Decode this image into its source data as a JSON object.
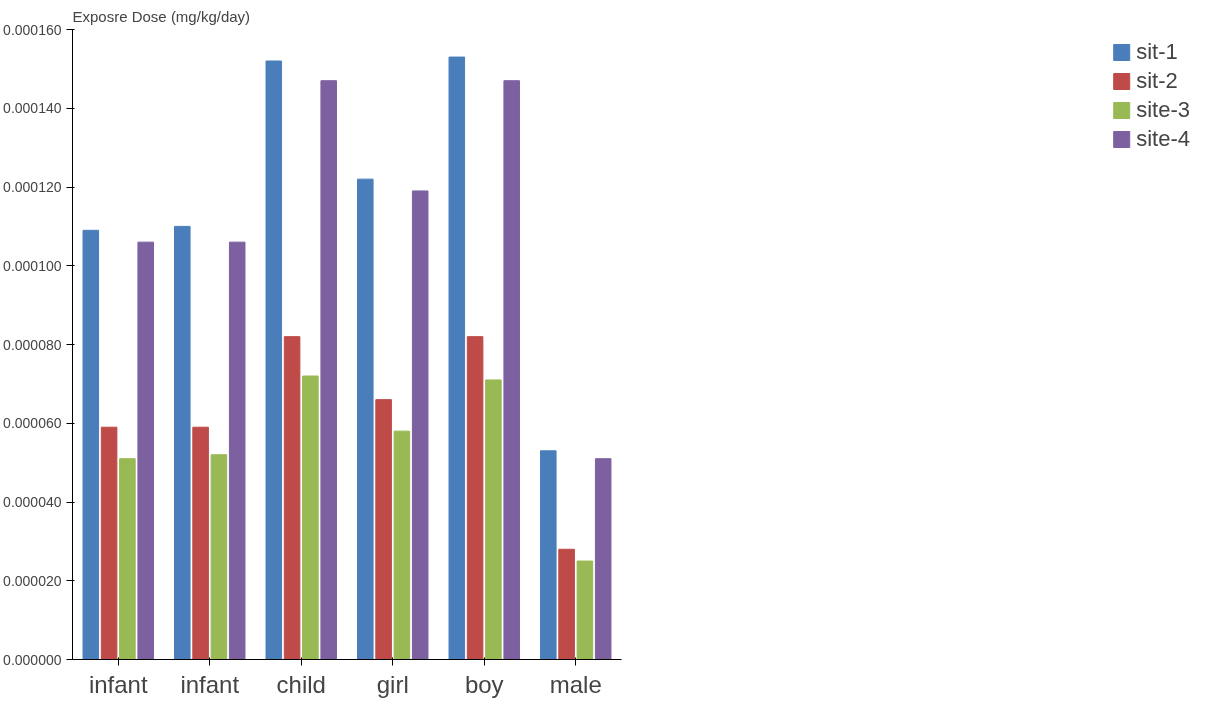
{
  "chart_data": {
    "type": "bar",
    "ylabel": "Exposre Dose (mg/kg/day)",
    "categories": [
      "infant",
      "infant",
      "child",
      "girl",
      "boy",
      "male"
    ],
    "series": [
      {
        "name": "sit-1",
        "color": "#4a7ebb",
        "values": [
          0.000109,
          0.00011,
          0.000152,
          0.000122,
          0.000153,
          5.3e-05
        ]
      },
      {
        "name": "sit-2",
        "color": "#be4b48",
        "values": [
          5.9e-05,
          5.9e-05,
          8.2e-05,
          6.6e-05,
          8.2e-05,
          2.8e-05
        ]
      },
      {
        "name": "site-3",
        "color": "#98b954",
        "values": [
          5.1e-05,
          5.2e-05,
          7.2e-05,
          5.8e-05,
          7.1e-05,
          2.5e-05
        ]
      },
      {
        "name": "site-4",
        "color": "#7d60a0",
        "values": [
          0.000106,
          0.000106,
          0.000147,
          0.000119,
          0.000147,
          5.1e-05
        ]
      }
    ],
    "ylim": [
      0,
      0.00016
    ],
    "yticks": [
      {
        "value": 0,
        "label": "0.000000"
      },
      {
        "value": 2e-05,
        "label": "0.000020"
      },
      {
        "value": 4e-05,
        "label": "0.000040"
      },
      {
        "value": 6e-05,
        "label": "0.000060"
      },
      {
        "value": 8e-05,
        "label": "0.000080"
      },
      {
        "value": 0.0001,
        "label": "0.000100"
      },
      {
        "value": 0.00012,
        "label": "0.000120"
      },
      {
        "value": 0.00014,
        "label": "0.000140"
      },
      {
        "value": 0.00016,
        "label": "0.000160"
      }
    ],
    "grid": false,
    "legend": "right"
  }
}
